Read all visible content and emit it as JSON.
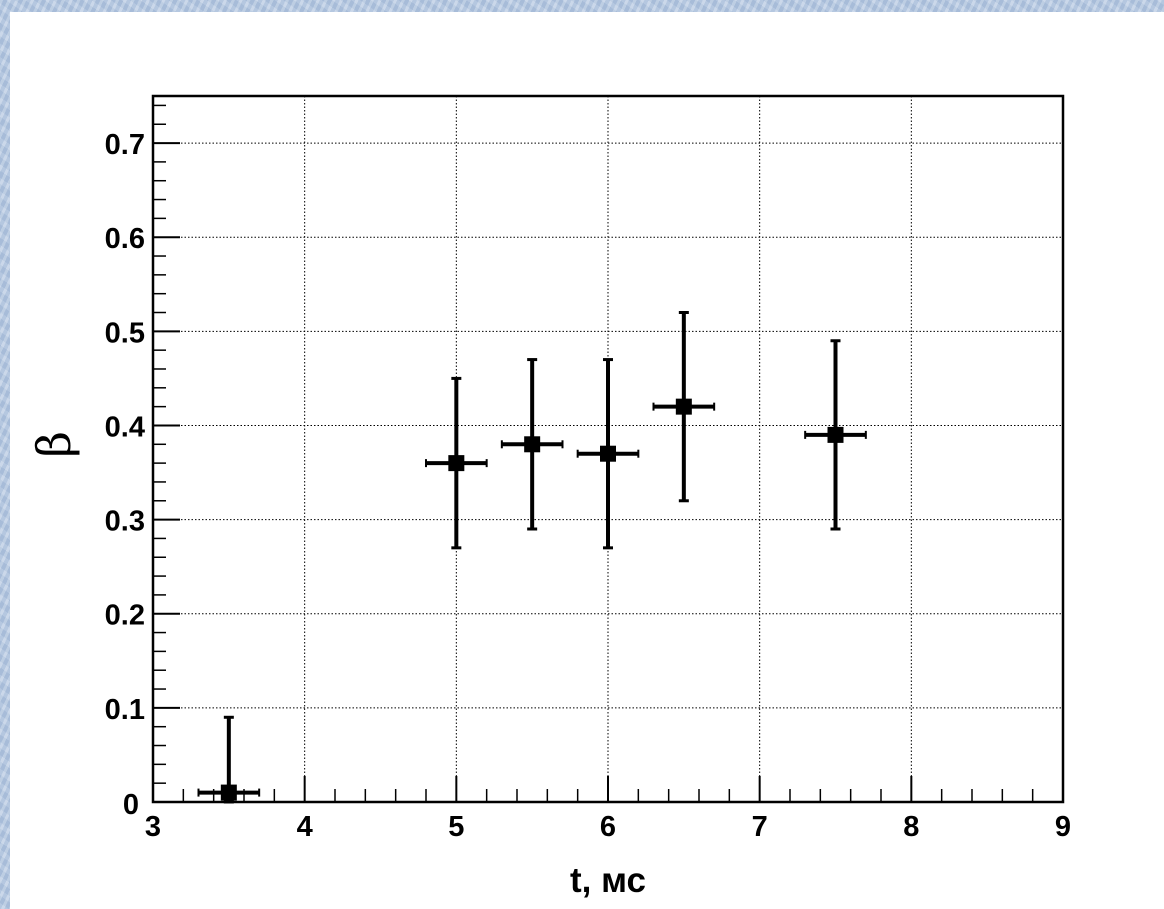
{
  "chart_data": {
    "type": "scatter",
    "xlabel": "t, мс",
    "ylabel": "β",
    "xlim": [
      3,
      9
    ],
    "ylim": [
      0,
      0.75
    ],
    "x_ticks": [
      3,
      4,
      5,
      6,
      7,
      8,
      9
    ],
    "x_tick_labels": [
      "3",
      "4",
      "5",
      "6",
      "7",
      "8",
      "9"
    ],
    "y_ticks": [
      0,
      0.1,
      0.2,
      0.3,
      0.4,
      0.5,
      0.6,
      0.7
    ],
    "y_tick_labels": [
      "0",
      "0.1",
      "0.2",
      "0.3",
      "0.4",
      "0.5",
      "0.6",
      "0.7"
    ],
    "grid": true,
    "marker": "square",
    "color": "#000000",
    "series": [
      {
        "points": [
          {
            "x": 3.5,
            "y": 0.01,
            "xerr": 0.2,
            "yerr_low": 0.01,
            "yerr_high": 0.08
          },
          {
            "x": 5.0,
            "y": 0.36,
            "xerr": 0.2,
            "yerr_low": 0.09,
            "yerr_high": 0.09
          },
          {
            "x": 5.5,
            "y": 0.38,
            "xerr": 0.2,
            "yerr_low": 0.09,
            "yerr_high": 0.09
          },
          {
            "x": 6.0,
            "y": 0.37,
            "xerr": 0.2,
            "yerr_low": 0.1,
            "yerr_high": 0.1
          },
          {
            "x": 6.5,
            "y": 0.42,
            "xerr": 0.2,
            "yerr_low": 0.1,
            "yerr_high": 0.1
          },
          {
            "x": 7.5,
            "y": 0.39,
            "xerr": 0.2,
            "yerr_low": 0.1,
            "yerr_high": 0.1
          }
        ]
      }
    ]
  }
}
